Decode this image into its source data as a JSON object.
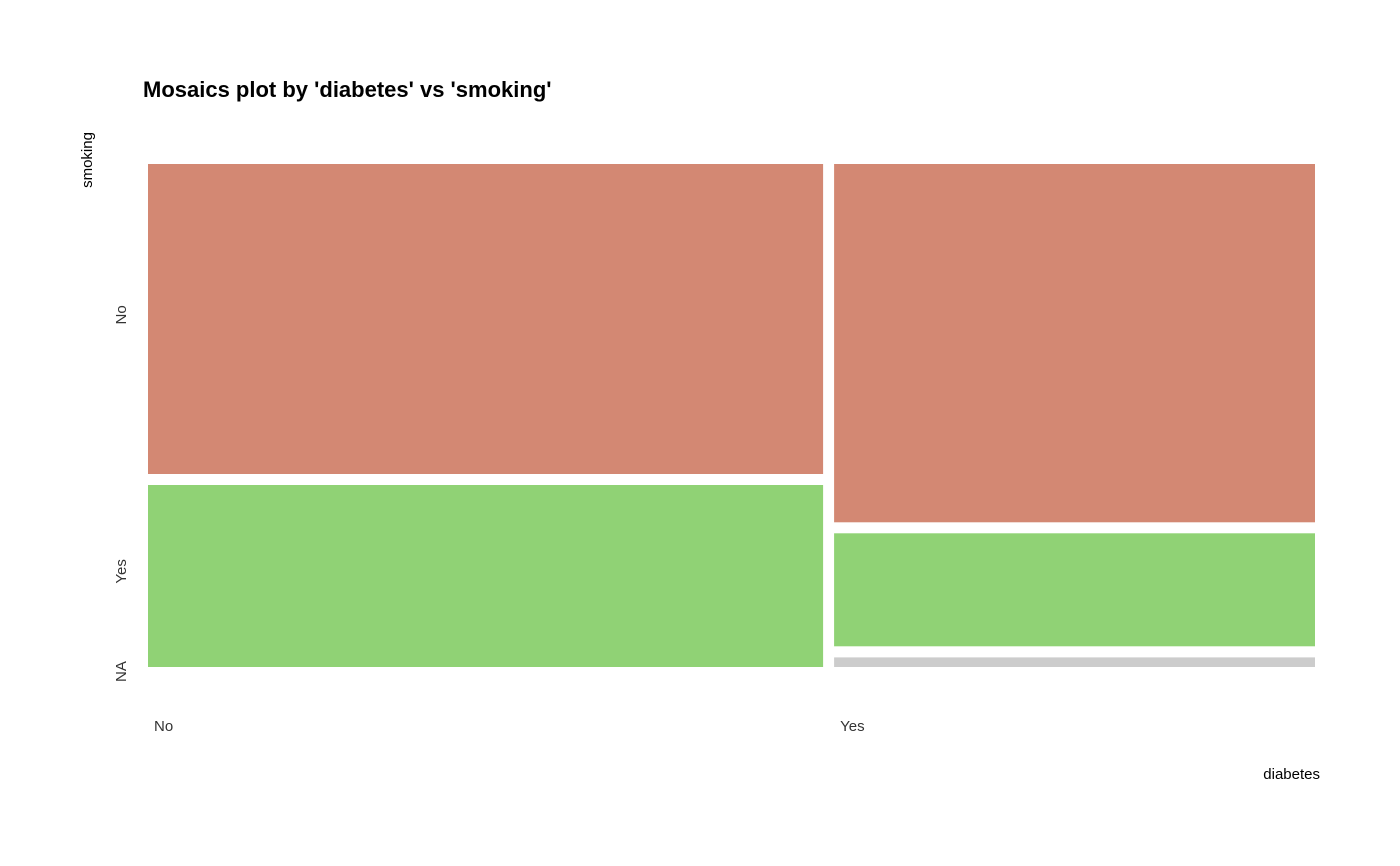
{
  "chart_data": {
    "type": "mosaic",
    "title": "Mosaics plot by 'diabetes' vs 'smoking'",
    "xlabel": "diabetes",
    "ylabel": "smoking",
    "x_categories": [
      "No",
      "Yes"
    ],
    "x_widths": [
      0.584,
      0.416
    ],
    "y_categories": [
      "No",
      "Yes",
      "NA"
    ],
    "segments": [
      {
        "x": "No",
        "proportions": {
          "No": 0.63,
          "Yes": 0.37,
          "NA": 0.0
        }
      },
      {
        "x": "Yes",
        "proportions": {
          "No": 0.745,
          "Yes": 0.235,
          "NA": 0.02
        }
      }
    ],
    "colors": {
      "No": "#D38873",
      "Yes": "#90D275",
      "NA": "#CCCCCC"
    },
    "y_tick_positions": {
      "No": 0.7,
      "Yes": 0.19,
      "NA": 0.0
    },
    "grid": false,
    "legend": "none"
  }
}
